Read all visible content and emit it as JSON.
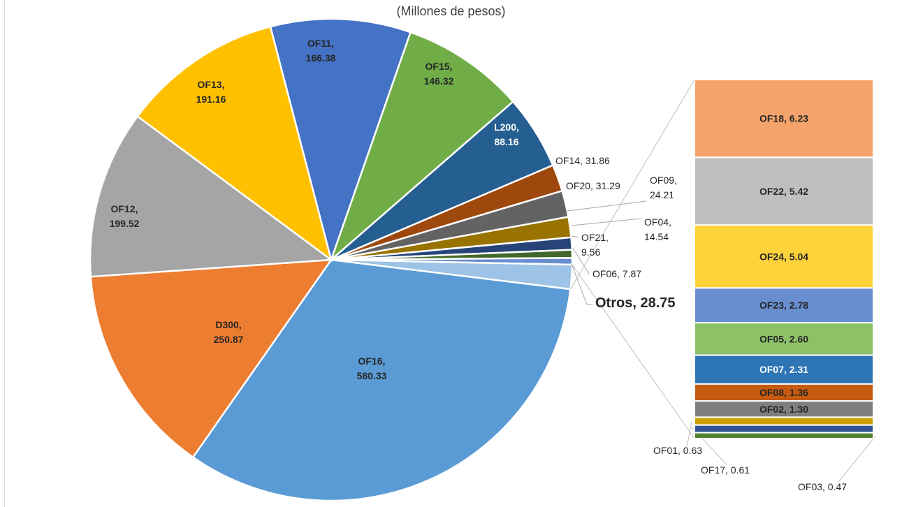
{
  "chart_data": {
    "type": "pie",
    "subtitle": "(Millones de pesos)",
    "main_slices": [
      {
        "name": "OF16",
        "value": 580.33,
        "color": "#5B9BD5",
        "label_lines": [
          "OF16,",
          "580.33"
        ]
      },
      {
        "name": "D300",
        "value": 250.87,
        "color": "#ED7D31",
        "label_lines": [
          "D300,",
          "250.87"
        ]
      },
      {
        "name": "OF12",
        "value": 199.52,
        "color": "#A5A5A5",
        "label_lines": [
          "OF12,",
          "199.52"
        ]
      },
      {
        "name": "OF13",
        "value": 191.16,
        "color": "#FFC000",
        "label_lines": [
          "OF13,",
          "191.16"
        ]
      },
      {
        "name": "OF11",
        "value": 166.38,
        "color": "#4472C4",
        "label_lines": [
          "OF11,",
          "166.38"
        ]
      },
      {
        "name": "OF15",
        "value": 146.32,
        "color": "#70AD47",
        "label_lines": [
          "OF15,",
          "146.32"
        ]
      },
      {
        "name": "L200",
        "value": 88.16,
        "color": "#255E91",
        "label_lines": [
          "L200,",
          "88.16"
        ]
      },
      {
        "name": "OF14",
        "value": 31.86,
        "color": "#9E480E",
        "label_lines": [
          "OF14, 31.86"
        ]
      },
      {
        "name": "OF20",
        "value": 31.29,
        "color": "#636363",
        "label_lines": [
          "OF20, 31.29"
        ]
      },
      {
        "name": "OF09",
        "value": 24.21,
        "color": "#997300",
        "label_lines": [
          "OF09,",
          "24.21"
        ]
      },
      {
        "name": "OF04",
        "value": 14.54,
        "color": "#264478",
        "label_lines": [
          "OF04,",
          "14.54"
        ]
      },
      {
        "name": "OF21",
        "value": 9.56,
        "color": "#43682B",
        "label_lines": [
          "OF21,",
          "9.56"
        ]
      },
      {
        "name": "OF06",
        "value": 7.87,
        "color": "#698ED0",
        "label_lines": [
          "OF06, 7.87"
        ]
      },
      {
        "name": "Otros",
        "value": 28.75,
        "color": "#9DC3E6",
        "label_lines": [
          "Otros,  28.75"
        ]
      }
    ],
    "breakdown_of": "Otros",
    "breakdown_bars": [
      {
        "name": "OF18",
        "value": 6.23,
        "color": "#F4A46B",
        "label": "OF18,  6.23"
      },
      {
        "name": "OF22",
        "value": 5.42,
        "color": "#BFBFBF",
        "label": "OF22,  5.42"
      },
      {
        "name": "OF24",
        "value": 5.04,
        "color": "#FFD13A",
        "label": "OF24,  5.04"
      },
      {
        "name": "OF23",
        "value": 2.78,
        "color": "#698ED0",
        "label": "OF23,  2.78"
      },
      {
        "name": "OF05",
        "value": 2.6,
        "color": "#8CC168",
        "label": "OF05,  2.60"
      },
      {
        "name": "OF07",
        "value": 2.31,
        "color": "#2E75B6",
        "label": "OF07,  2.31"
      },
      {
        "name": "OF08",
        "value": 1.36,
        "color": "#C55A11",
        "label": "OF08,  1.36"
      },
      {
        "name": "OF02",
        "value": 1.3,
        "color": "#7F7F7F",
        "label": "OF02,  1.30"
      },
      {
        "name": "OF01",
        "value": 0.63,
        "color": "#C9A000",
        "label": "OF01,  0.63"
      },
      {
        "name": "OF17",
        "value": 0.61,
        "color": "#2F5597",
        "label": "OF17,  0.61"
      },
      {
        "name": "OF03",
        "value": 0.47,
        "color": "#548235",
        "label": "OF03,  0.47"
      }
    ]
  }
}
